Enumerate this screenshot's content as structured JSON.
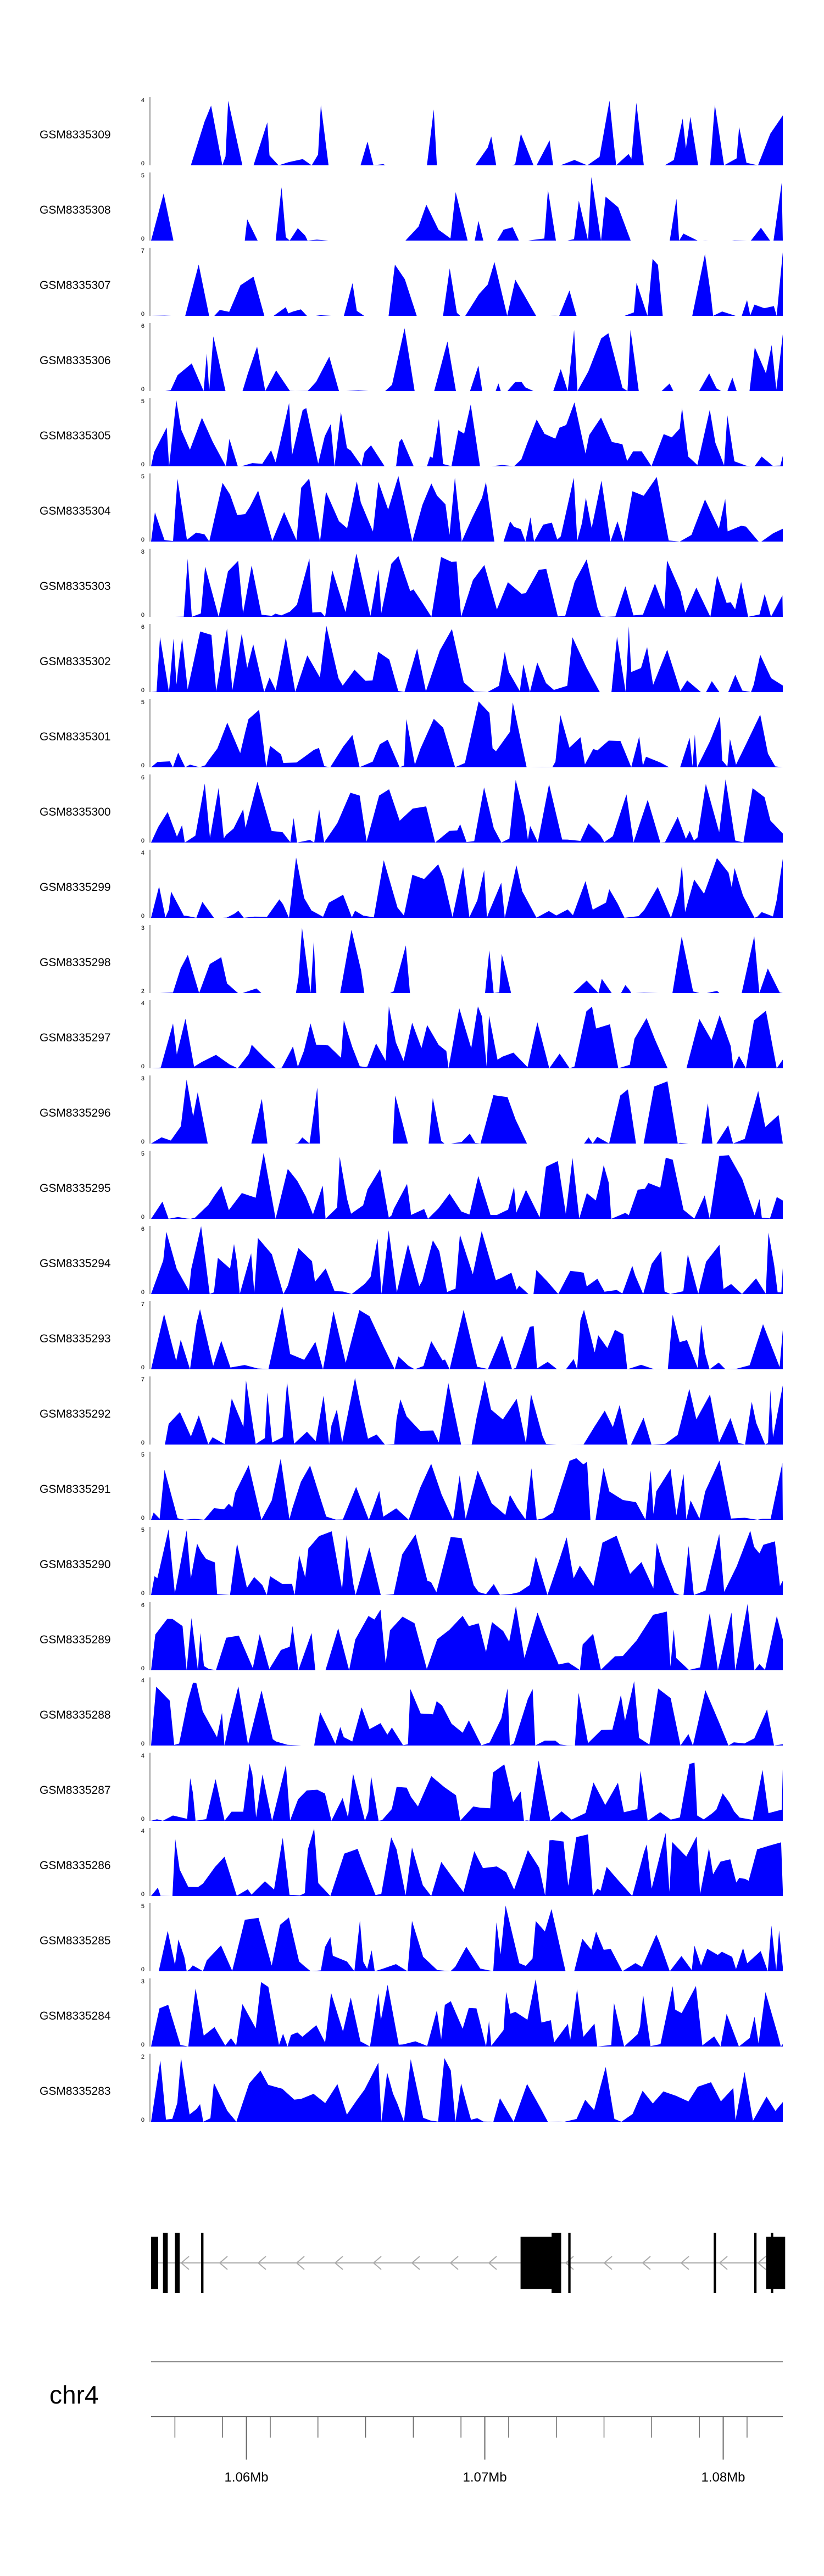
{
  "tracks": [
    {
      "label": "GSM8335309",
      "ymax": "4",
      "ymin": "0"
    },
    {
      "label": "GSM8335308",
      "ymax": "5",
      "ymin": "0"
    },
    {
      "label": "GSM8335307",
      "ymax": "7",
      "ymin": "0"
    },
    {
      "label": "GSM8335306",
      "ymax": "6",
      "ymin": "0"
    },
    {
      "label": "GSM8335305",
      "ymax": "5",
      "ymin": "0"
    },
    {
      "label": "GSM8335304",
      "ymax": "5",
      "ymin": "0"
    },
    {
      "label": "GSM8335303",
      "ymax": "8",
      "ymin": "0"
    },
    {
      "label": "GSM8335302",
      "ymax": "6",
      "ymin": "0"
    },
    {
      "label": "GSM8335301",
      "ymax": "5",
      "ymin": "0"
    },
    {
      "label": "GSM8335300",
      "ymax": "6",
      "ymin": "0"
    },
    {
      "label": "GSM8335299",
      "ymax": "4",
      "ymin": "0"
    },
    {
      "label": "GSM8335298",
      "ymax": "3",
      "ymin": "2"
    },
    {
      "label": "GSM8335297",
      "ymax": "4",
      "ymin": "0"
    },
    {
      "label": "GSM8335296",
      "ymax": "3",
      "ymin": "0"
    },
    {
      "label": "GSM8335295",
      "ymax": "5",
      "ymin": "0"
    },
    {
      "label": "GSM8335294",
      "ymax": "6",
      "ymin": "0"
    },
    {
      "label": "GSM8335293",
      "ymax": "7",
      "ymin": "0"
    },
    {
      "label": "GSM8335292",
      "ymax": "7",
      "ymin": "0"
    },
    {
      "label": "GSM8335291",
      "ymax": "5",
      "ymin": "0"
    },
    {
      "label": "GSM8335290",
      "ymax": "5",
      "ymin": "0"
    },
    {
      "label": "GSM8335289",
      "ymax": "6",
      "ymin": "0"
    },
    {
      "label": "GSM8335288",
      "ymax": "4",
      "ymin": "0"
    },
    {
      "label": "GSM8335287",
      "ymax": "4",
      "ymin": "0"
    },
    {
      "label": "GSM8335286",
      "ymax": "4",
      "ymin": "0"
    },
    {
      "label": "GSM8335285",
      "ymax": "5",
      "ymin": "0"
    },
    {
      "label": "GSM8335284",
      "ymax": "3",
      "ymin": "0"
    },
    {
      "label": "GSM8335283",
      "ymax": "2",
      "ymin": "0"
    }
  ],
  "chromosome": "chr4",
  "axis_ticks": [
    "1.06Mb",
    "1.07Mb",
    "1.08Mb"
  ],
  "colors": {
    "signal": "#0000ff",
    "gene": "#000000",
    "axis": "#555555"
  },
  "chart_data": {
    "type": "area",
    "title": "",
    "xlabel": "",
    "ylabel": "",
    "x_range_mb": [
      1.056,
      1.0825
    ],
    "x_tick_values_mb": [
      1.06,
      1.07,
      1.08
    ],
    "grid": false,
    "legend": "none",
    "series_note": "27 coverage tracks; peak shapes depicted, individual bin values not labeled",
    "gene_model": {
      "strand": "-",
      "exons_mb": [
        [
          1.056,
          1.0563
        ],
        [
          1.0565,
          1.0567
        ],
        [
          1.057,
          1.0572
        ],
        [
          1.0581,
          1.0582
        ],
        [
          1.0715,
          1.0729
        ],
        [
          1.0728,
          1.0732
        ],
        [
          1.0735,
          1.0736
        ],
        [
          1.0796,
          1.0797
        ],
        [
          1.0813,
          1.0814
        ],
        [
          1.082,
          1.0821
        ],
        [
          1.0818,
          1.0826
        ]
      ]
    }
  }
}
